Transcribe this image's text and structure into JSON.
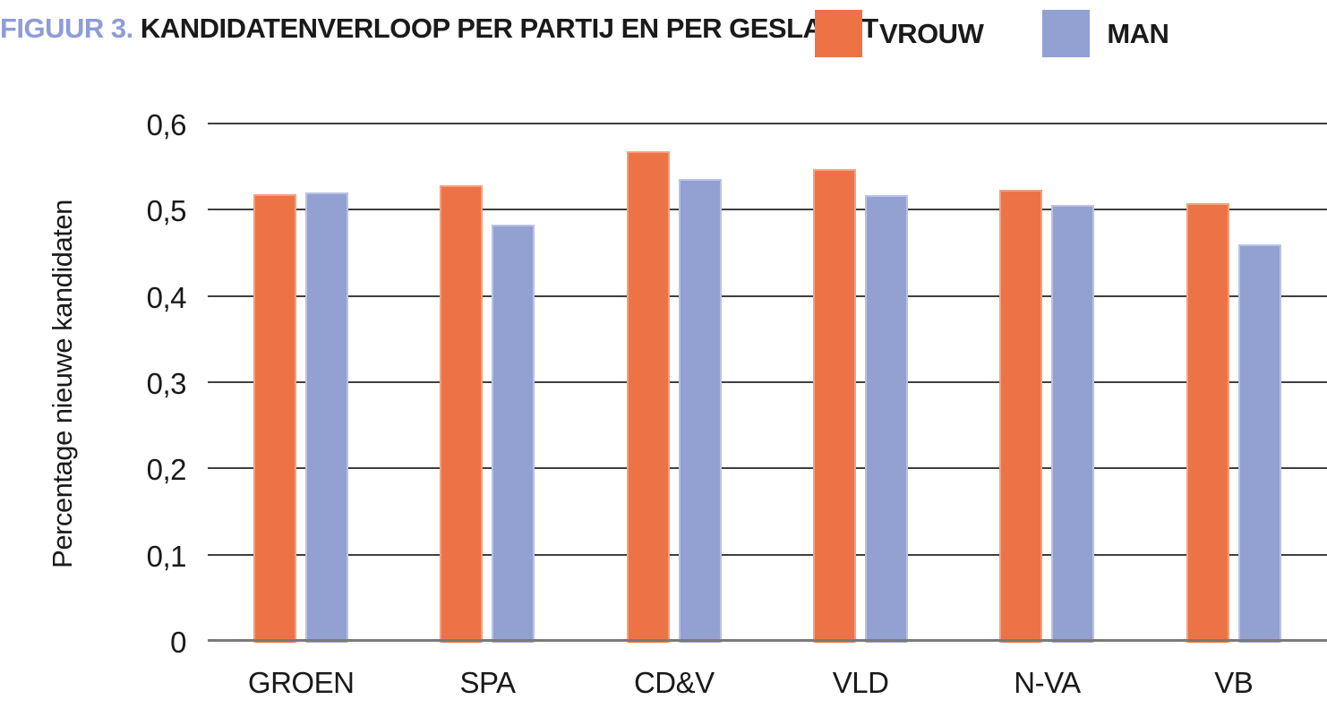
{
  "figure": {
    "title_prefix": "FIGUUR 3.",
    "title_main": "KANDIDATENVERLOOP PER PARTIJ EN PER GESLACHT"
  },
  "chart_data": {
    "type": "bar",
    "title": "FIGUUR 3. KANDIDATENVERLOOP PER PARTIJ EN PER GESLACHT",
    "ylabel": "Percentage nieuwe kandidaten",
    "xlabel": "",
    "ylim": [
      0,
      0.6
    ],
    "grid": true,
    "legend_position": "top-right",
    "categories": [
      "GROEN",
      "SPA",
      "CD&V",
      "VLD",
      "N-VA",
      "VB"
    ],
    "series": [
      {
        "name": "VROUW",
        "color": "#ed7346",
        "border_color": "#f4a07e",
        "values": [
          0.52,
          0.53,
          0.57,
          0.549,
          0.525,
          0.51
        ]
      },
      {
        "name": "MAN",
        "color": "#93a0d2",
        "border_color": "#b9c2e5",
        "values": [
          0.522,
          0.485,
          0.538,
          0.519,
          0.508,
          0.462
        ]
      }
    ],
    "yticks": [
      {
        "value": 0.6,
        "label": "0,6"
      },
      {
        "value": 0.5,
        "label": "0,5"
      },
      {
        "value": 0.4,
        "label": "0,4"
      },
      {
        "value": 0.3,
        "label": "0,3"
      },
      {
        "value": 0.2,
        "label": "0,2"
      },
      {
        "value": 0.1,
        "label": "0,1"
      },
      {
        "value": 0,
        "label": "0"
      }
    ],
    "colors": {
      "title_prefix": "#8f9cd8",
      "text": "#1a1a1a",
      "gridline": "#3f3f3f",
      "baseline": "#7a7a7a",
      "background": "#ffffff"
    }
  }
}
